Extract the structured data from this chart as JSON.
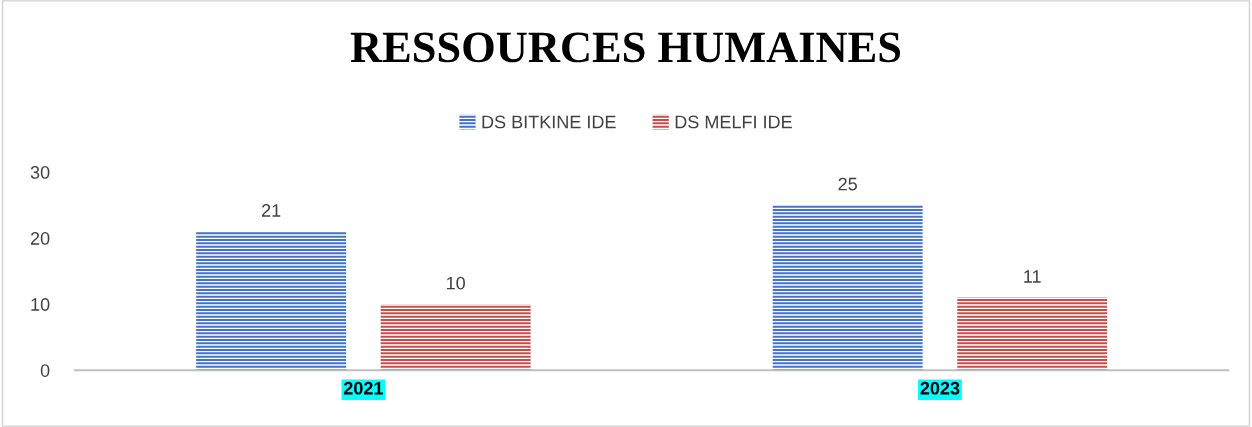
{
  "chart_data": {
    "type": "bar",
    "title": "RESSOURCES HUMAINES",
    "categories": [
      "2021",
      "2023"
    ],
    "series": [
      {
        "name": "DS BITKINE IDE",
        "color": "#4472c4",
        "values": [
          21,
          25
        ]
      },
      {
        "name": "DS MELFI IDE",
        "color": "#c0504d",
        "values": [
          10,
          11
        ]
      }
    ],
    "ylim": [
      0,
      30
    ],
    "yticks": [
      0,
      10,
      20,
      30
    ],
    "grid": false,
    "legend": "top",
    "data_labels": true
  }
}
